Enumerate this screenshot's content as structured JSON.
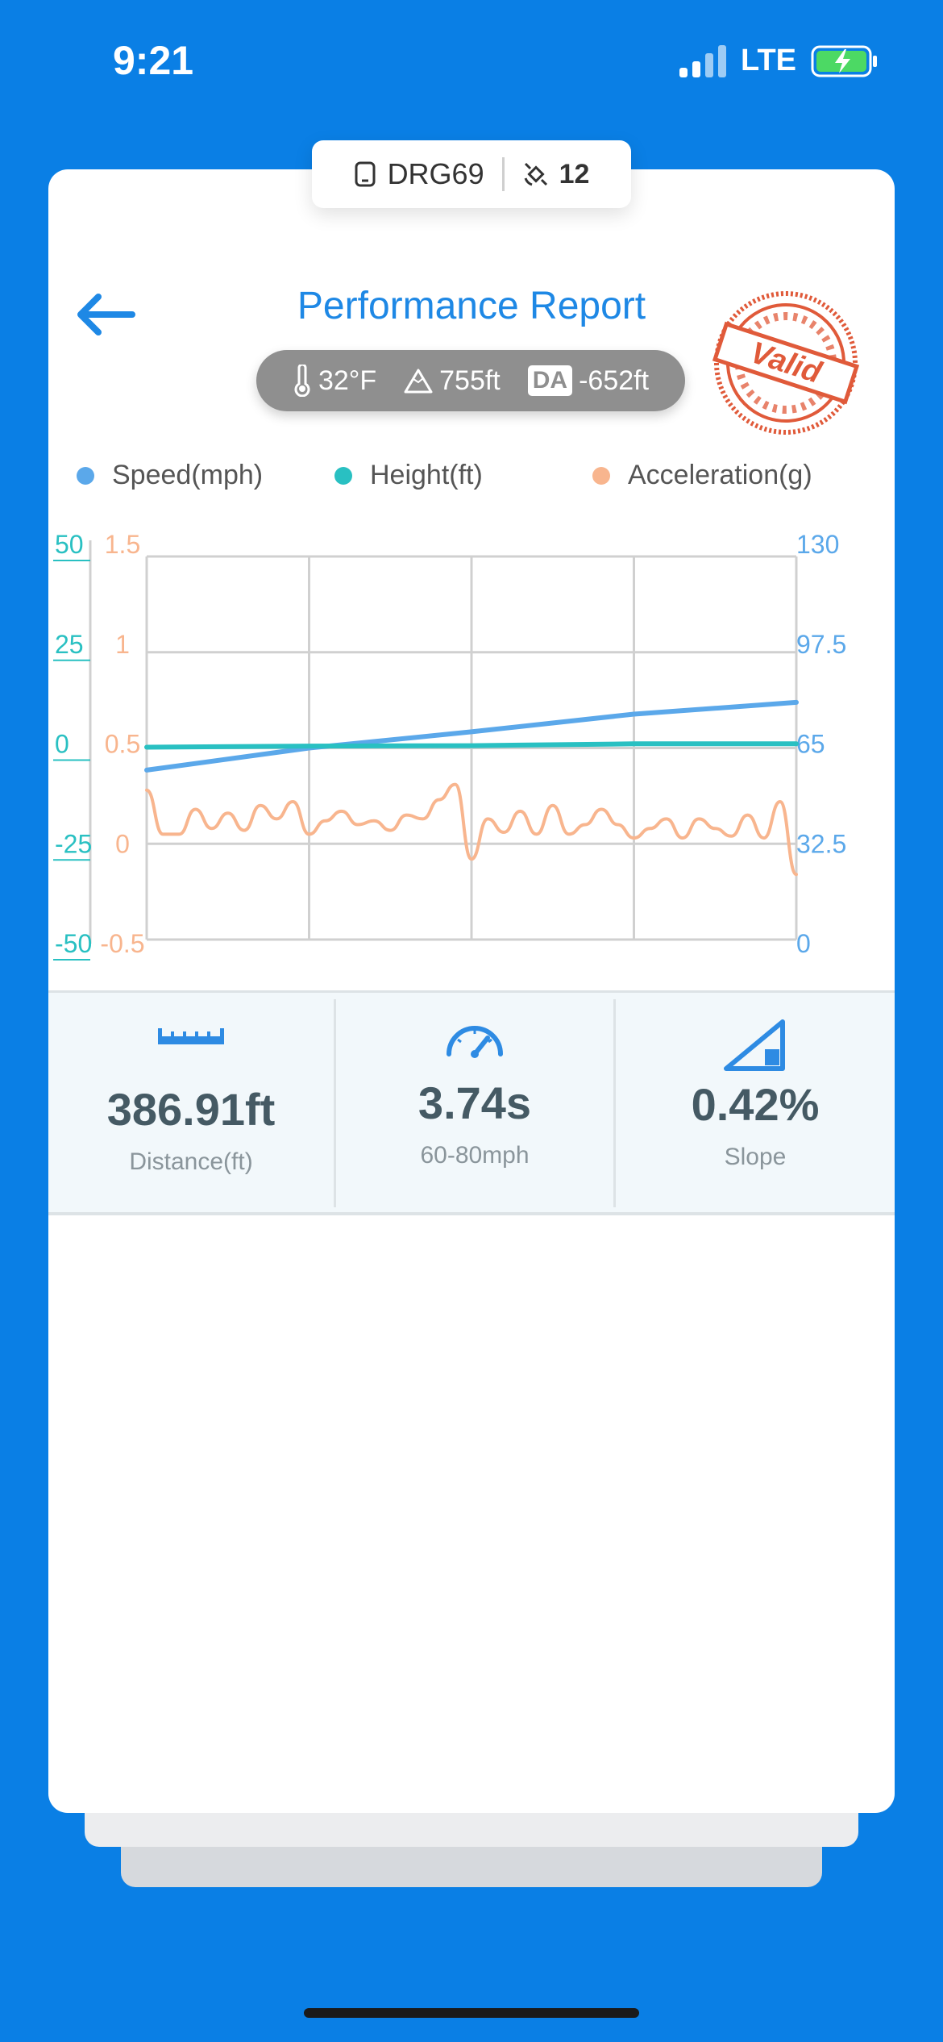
{
  "status_bar": {
    "time": "9:21",
    "network": "LTE"
  },
  "device": {
    "name": "DRG69",
    "satellites": "12"
  },
  "header": {
    "title": "Performance Report"
  },
  "conditions": {
    "temperature": "32°F",
    "elevation": "755ft",
    "da_label": "DA",
    "density_altitude": "-652ft"
  },
  "stamp": {
    "text": "Valid"
  },
  "chart_data": {
    "type": "line",
    "series": [
      {
        "name": "Speed(mph)",
        "color": "#5BA8EA",
        "axis": "right",
        "x": [
          0,
          1,
          2,
          3,
          4
        ],
        "values": [
          57.5,
          65,
          70.5,
          76.5,
          80.5
        ]
      },
      {
        "name": "Height(ft)",
        "color": "#29C0C2",
        "axis": "left",
        "x": [
          0,
          1,
          2,
          3,
          4
        ],
        "values": [
          0.2,
          0.5,
          0.6,
          1.1,
          1.1
        ]
      },
      {
        "name": "Acceleration(g)",
        "color": "#F8B58E",
        "axis": "accel",
        "x": [
          0,
          0.1,
          0.2,
          0.3,
          0.4,
          0.5,
          0.6,
          0.7,
          0.8,
          0.9,
          1.0,
          1.1,
          1.2,
          1.3,
          1.4,
          1.5,
          1.6,
          1.7,
          1.8,
          1.9,
          2.0,
          2.1,
          2.2,
          2.3,
          2.4,
          2.5,
          2.6,
          2.7,
          2.8,
          2.9,
          3.0,
          3.1,
          3.2,
          3.3,
          3.4,
          3.5,
          3.6,
          3.7,
          3.8,
          3.9,
          4.0
        ],
        "values": [
          0.28,
          0.05,
          0.05,
          0.18,
          0.08,
          0.16,
          0.07,
          0.2,
          0.13,
          0.22,
          0.05,
          0.12,
          0.17,
          0.1,
          0.12,
          0.07,
          0.15,
          0.13,
          0.23,
          0.31,
          -0.08,
          0.13,
          0.06,
          0.17,
          0.05,
          0.2,
          0.05,
          0.1,
          0.18,
          0.1,
          0.03,
          0.08,
          0.13,
          0.03,
          0.13,
          0.08,
          0.04,
          0.15,
          0.03,
          0.22,
          -0.16
        ]
      }
    ],
    "axes": {
      "left": {
        "ticks": [
          "50",
          "25",
          "0",
          "-25",
          "-50"
        ],
        "ylim": [
          -50,
          50
        ],
        "color": "#29C0C2"
      },
      "accel": {
        "ticks": [
          "1.5",
          "1",
          "0.5",
          "0",
          "-0.5"
        ],
        "ylim": [
          -0.5,
          1.5
        ],
        "color": "#F8B58E"
      },
      "right": {
        "ticks": [
          "130",
          "97.5",
          "65",
          "32.5",
          "0"
        ],
        "ylim": [
          0,
          130
        ],
        "color": "#5BA8EA"
      }
    },
    "grid": true,
    "legend_position": "top"
  },
  "stats": [
    {
      "value": "386.91ft",
      "label": "Distance(ft)",
      "icon": "ruler-icon"
    },
    {
      "value": "3.74s",
      "label": "60-80mph",
      "icon": "speedometer-icon"
    },
    {
      "value": "0.42%",
      "label": "Slope",
      "icon": "slope-icon"
    }
  ],
  "colors": {
    "background": "#0A7FE5",
    "accent": "#1E88E5",
    "stamp": "#E05A3A"
  }
}
